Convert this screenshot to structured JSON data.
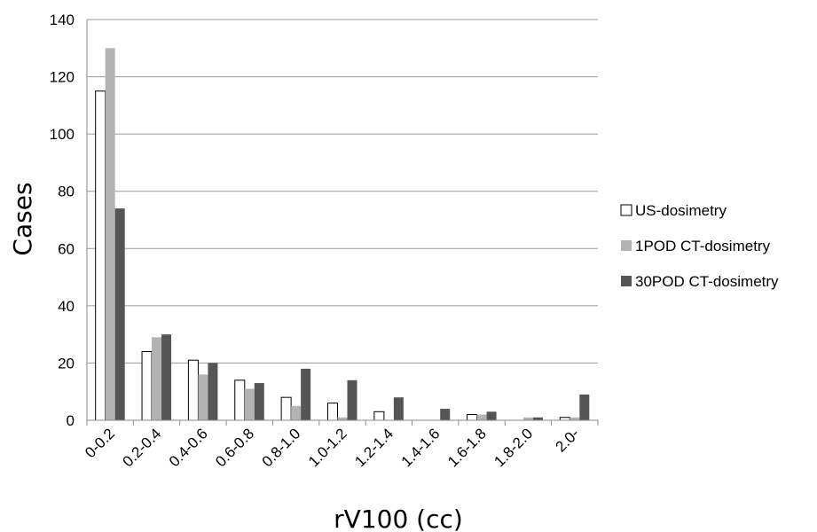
{
  "chart_data": {
    "type": "bar",
    "title": "",
    "xlabel": "rV100 (cc)",
    "ylabel": "Cases",
    "ylim": [
      0,
      140
    ],
    "yticks": [
      0,
      20,
      40,
      60,
      80,
      100,
      120,
      140
    ],
    "grid": true,
    "legend_position": "right",
    "categories": [
      "0-0.2",
      "0.2-0.4",
      "0.4-0.6",
      "0.6-0.8",
      "0.8-1.0",
      "1.0-1.2",
      "1.2-1.4",
      "1.4-1.6",
      "1.6-1.8",
      "1.8-2.0",
      "2.0-"
    ],
    "series": [
      {
        "name": "US-dosimetry",
        "color": "#ffffff",
        "values": [
          115,
          24,
          21,
          14,
          8,
          6,
          3,
          0,
          2,
          0,
          1
        ]
      },
      {
        "name": "1POD CT-dosimetry",
        "color": "#b3b3b3",
        "values": [
          130,
          29,
          16,
          11,
          5,
          1,
          0,
          0,
          2,
          1,
          1
        ]
      },
      {
        "name": "30POD CT-dosimetry",
        "color": "#555555",
        "values": [
          74,
          30,
          20,
          13,
          18,
          14,
          8,
          4,
          3,
          1,
          9
        ]
      }
    ]
  }
}
